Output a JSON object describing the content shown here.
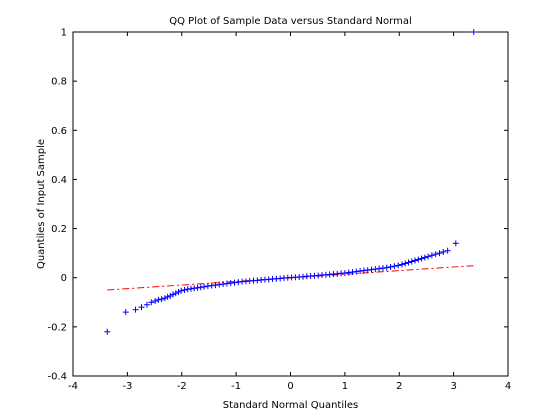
{
  "chart_data": {
    "type": "scatter",
    "title": "QQ Plot of Sample Data versus Standard Normal",
    "xlabel": "Standard Normal Quantiles",
    "ylabel": "Quantiles of Input Sample",
    "xlim": [
      -4,
      4
    ],
    "ylim": [
      -0.4,
      1
    ],
    "xticks": [
      "-4",
      "-3",
      "-2",
      "-1",
      "0",
      "1",
      "2",
      "3",
      "4"
    ],
    "yticks": [
      "-0.4",
      "-0.2",
      "0",
      "0.2",
      "0.4",
      "0.6",
      "0.8",
      "1"
    ],
    "grid": false,
    "legend": "none",
    "series": [
      {
        "marker": "+",
        "color": "#0000ff",
        "points": [
          [
            -3.37,
            -0.22
          ],
          [
            -3.03,
            -0.14
          ],
          [
            -2.85,
            -0.13
          ],
          [
            -2.74,
            -0.12
          ],
          [
            -2.64,
            -0.11
          ],
          [
            -2.56,
            -0.1
          ],
          [
            -2.49,
            -0.095
          ],
          [
            -2.43,
            -0.09
          ],
          [
            -2.37,
            -0.087
          ],
          [
            -2.31,
            -0.083
          ],
          [
            -2.26,
            -0.078
          ],
          [
            -2.21,
            -0.074
          ],
          [
            -2.16,
            -0.068
          ],
          [
            -2.11,
            -0.063
          ],
          [
            -2.06,
            -0.058
          ],
          [
            -2.01,
            -0.053
          ],
          [
            -1.95,
            -0.05
          ],
          [
            -1.89,
            -0.047
          ],
          [
            -1.83,
            -0.045
          ],
          [
            -1.77,
            -0.043
          ],
          [
            -1.71,
            -0.041
          ],
          [
            -1.65,
            -0.039
          ],
          [
            -1.59,
            -0.037
          ],
          [
            -1.52,
            -0.034
          ],
          [
            -1.45,
            -0.032
          ],
          [
            -1.38,
            -0.03
          ],
          [
            -1.31,
            -0.028
          ],
          [
            -1.24,
            -0.026
          ],
          [
            -1.17,
            -0.024
          ],
          [
            -1.1,
            -0.022
          ],
          [
            -1.03,
            -0.02
          ],
          [
            -0.96,
            -0.018
          ],
          [
            -0.89,
            -0.016
          ],
          [
            -0.82,
            -0.015
          ],
          [
            -0.75,
            -0.013
          ],
          [
            -0.68,
            -0.012
          ],
          [
            -0.61,
            -0.011
          ],
          [
            -0.54,
            -0.009
          ],
          [
            -0.47,
            -0.008
          ],
          [
            -0.4,
            -0.007
          ],
          [
            -0.33,
            -0.005
          ],
          [
            -0.26,
            -0.004
          ],
          [
            -0.19,
            -0.003
          ],
          [
            -0.12,
            -0.001
          ],
          [
            -0.05,
            0.0
          ],
          [
            0.02,
            0.001
          ],
          [
            0.09,
            0.002
          ],
          [
            0.16,
            0.003
          ],
          [
            0.23,
            0.004
          ],
          [
            0.3,
            0.006
          ],
          [
            0.37,
            0.007
          ],
          [
            0.44,
            0.008
          ],
          [
            0.51,
            0.009
          ],
          [
            0.58,
            0.011
          ],
          [
            0.65,
            0.012
          ],
          [
            0.72,
            0.013
          ],
          [
            0.79,
            0.015
          ],
          [
            0.86,
            0.016
          ],
          [
            0.93,
            0.018
          ],
          [
            1.0,
            0.019
          ],
          [
            1.07,
            0.021
          ],
          [
            1.14,
            0.023
          ],
          [
            1.21,
            0.025
          ],
          [
            1.28,
            0.027
          ],
          [
            1.35,
            0.029
          ],
          [
            1.42,
            0.031
          ],
          [
            1.49,
            0.033
          ],
          [
            1.56,
            0.035
          ],
          [
            1.63,
            0.037
          ],
          [
            1.7,
            0.039
          ],
          [
            1.77,
            0.041
          ],
          [
            1.84,
            0.044
          ],
          [
            1.91,
            0.047
          ],
          [
            1.98,
            0.05
          ],
          [
            2.05,
            0.054
          ],
          [
            2.11,
            0.058
          ],
          [
            2.17,
            0.062
          ],
          [
            2.23,
            0.066
          ],
          [
            2.29,
            0.07
          ],
          [
            2.35,
            0.074
          ],
          [
            2.41,
            0.078
          ],
          [
            2.47,
            0.082
          ],
          [
            2.53,
            0.086
          ],
          [
            2.6,
            0.091
          ],
          [
            2.67,
            0.096
          ],
          [
            2.74,
            0.1
          ],
          [
            2.81,
            0.105
          ],
          [
            2.89,
            0.11
          ],
          [
            3.04,
            0.14
          ],
          [
            3.37,
            1.0
          ]
        ]
      },
      {
        "style": "dash-dot",
        "color": "#ff0000",
        "points": [
          [
            -3.37,
            -0.05
          ],
          [
            3.37,
            0.049
          ]
        ]
      }
    ]
  }
}
